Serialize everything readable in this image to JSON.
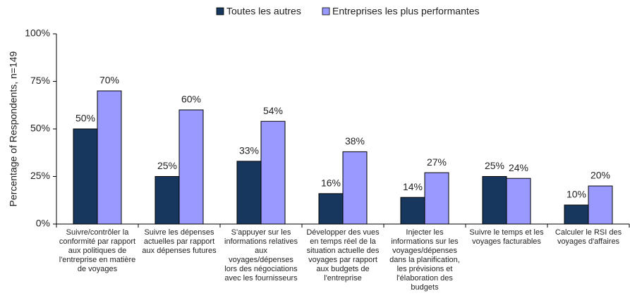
{
  "chart_data": {
    "type": "bar",
    "y_label": "Percentage of Respondents, n=149",
    "categories": [
      "Suivre/contrôler la conformité par rapport aux politiques de l'entreprise en matière de voyages",
      "Suivre les dépenses actuelles par rapport aux dépenses futures",
      "S'appuyer sur les informations relatives aux voyages/dépenses lors des négociations avec les fournisseurs",
      "Développer des vues en temps réel de la situation actuelle des voyages par rapport aux budgets de l'entreprise",
      "Injecter les informations sur les voyages/dépenses dans la planification, les prévisions et l'élaboration des budgets",
      "Suivre le temps et les voyages facturables",
      "Calculer le RSI des voyages d'affaires"
    ],
    "series": [
      {
        "name": "Toutes les autres",
        "color": "#17375e",
        "values": [
          50,
          25,
          33,
          16,
          14,
          25,
          10
        ],
        "value_labels": [
          "50%",
          "25%",
          "33%",
          "16%",
          "14%",
          "25%",
          "10%"
        ]
      },
      {
        "name": "Entreprises les plus performantes",
        "color": "#9999ff",
        "values": [
          70,
          60,
          54,
          38,
          27,
          24,
          20
        ],
        "value_labels": [
          "70%",
          "60%",
          "54%",
          "38%",
          "27%",
          "24%",
          "20%"
        ]
      }
    ],
    "ylim": [
      0,
      100
    ],
    "yticks": [
      {
        "value": 0,
        "label": "0%"
      },
      {
        "value": 25,
        "label": "25%"
      },
      {
        "value": 50,
        "label": "50%"
      },
      {
        "value": 75,
        "label": "75%"
      },
      {
        "value": 100,
        "label": "100%"
      }
    ],
    "legend": "top"
  }
}
